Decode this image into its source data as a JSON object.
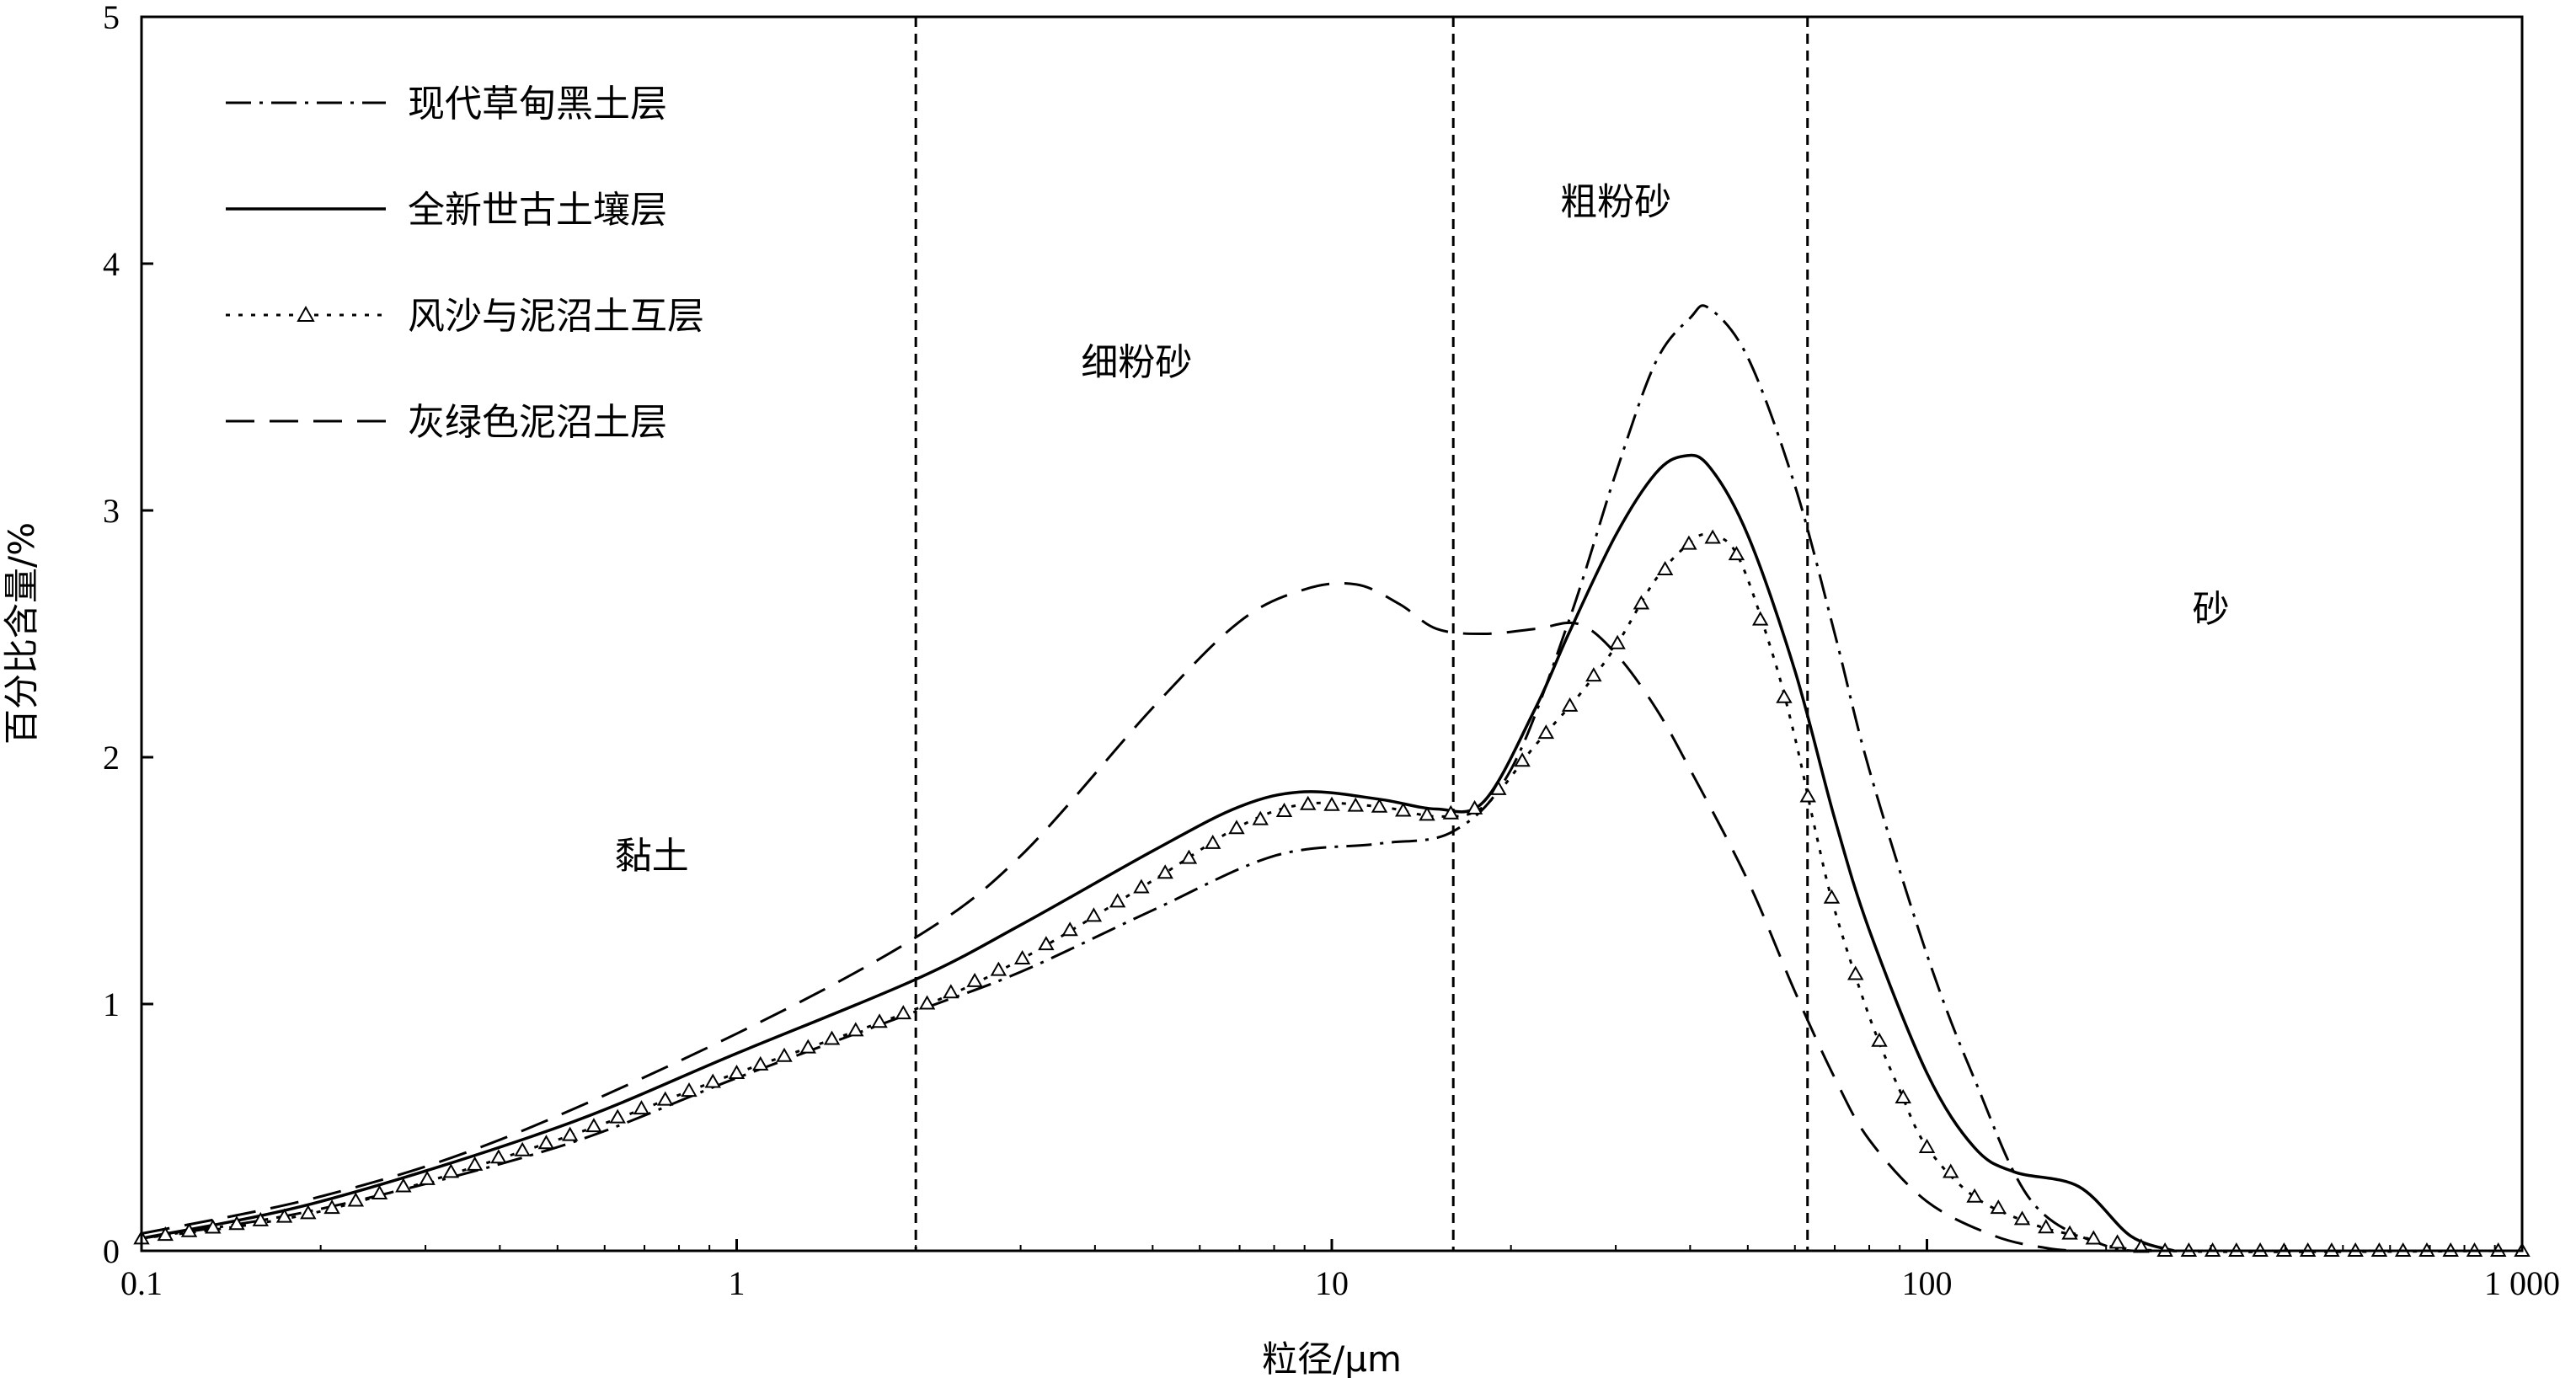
{
  "chart_data": {
    "type": "line",
    "xscale": "log",
    "xlim": [
      0.1,
      1000
    ],
    "ylim": [
      0,
      5
    ],
    "xlabel": "粒径/μm",
    "ylabel": "百分比含量/%",
    "x_ticks": [
      0.1,
      1,
      10,
      100,
      1000
    ],
    "x_tick_labels": [
      "0.1",
      "1",
      "10",
      "100",
      "1 000"
    ],
    "y_ticks": [
      0,
      1,
      2,
      3,
      4,
      5
    ],
    "y_tick_labels": [
      "0",
      "1",
      "2",
      "3",
      "4",
      "5"
    ],
    "legend_position": "top-left",
    "boundaries": [
      2,
      16,
      63
    ],
    "regions": [
      {
        "label": "黏土",
        "x": 0.72,
        "y": 1.55
      },
      {
        "label": "细粉砂",
        "x": 4.7,
        "y": 3.55
      },
      {
        "label": "粗粉砂",
        "x": 30,
        "y": 4.2
      },
      {
        "label": "砂",
        "x": 300,
        "y": 2.55
      }
    ],
    "series": [
      {
        "name": "现代草甸黑土层",
        "style": "dashdot",
        "points": [
          [
            0.1,
            0.05
          ],
          [
            0.2,
            0.17
          ],
          [
            0.5,
            0.42
          ],
          [
            1,
            0.7
          ],
          [
            2,
            0.97
          ],
          [
            3,
            1.13
          ],
          [
            5,
            1.38
          ],
          [
            8,
            1.6
          ],
          [
            12,
            1.65
          ],
          [
            16,
            1.7
          ],
          [
            20,
            1.95
          ],
          [
            25,
            2.55
          ],
          [
            30,
            3.15
          ],
          [
            35,
            3.6
          ],
          [
            40,
            3.78
          ],
          [
            43,
            3.82
          ],
          [
            50,
            3.62
          ],
          [
            60,
            3.1
          ],
          [
            70,
            2.5
          ],
          [
            80,
            1.95
          ],
          [
            100,
            1.2
          ],
          [
            120,
            0.7
          ],
          [
            150,
            0.2
          ],
          [
            200,
            0.02
          ],
          [
            250,
            0.0
          ]
        ]
      },
      {
        "name": "全新世古土壤层",
        "style": "solid",
        "points": [
          [
            0.1,
            0.05
          ],
          [
            0.2,
            0.2
          ],
          [
            0.5,
            0.5
          ],
          [
            1,
            0.8
          ],
          [
            2,
            1.1
          ],
          [
            3,
            1.32
          ],
          [
            5,
            1.62
          ],
          [
            7,
            1.8
          ],
          [
            9,
            1.86
          ],
          [
            12,
            1.83
          ],
          [
            15,
            1.79
          ],
          [
            18,
            1.82
          ],
          [
            22,
            2.2
          ],
          [
            25,
            2.5
          ],
          [
            30,
            2.9
          ],
          [
            35,
            3.15
          ],
          [
            39,
            3.22
          ],
          [
            43,
            3.18
          ],
          [
            50,
            2.9
          ],
          [
            60,
            2.35
          ],
          [
            70,
            1.75
          ],
          [
            80,
            1.3
          ],
          [
            100,
            0.72
          ],
          [
            120,
            0.42
          ],
          [
            140,
            0.32
          ],
          [
            180,
            0.26
          ],
          [
            220,
            0.06
          ],
          [
            260,
            0.0
          ]
        ]
      },
      {
        "name": "风沙与泥沼土互层",
        "style": "dotted-triangle",
        "points": [
          [
            0.1,
            0.05
          ],
          [
            0.2,
            0.16
          ],
          [
            0.5,
            0.45
          ],
          [
            1,
            0.72
          ],
          [
            2,
            0.98
          ],
          [
            3,
            1.18
          ],
          [
            5,
            1.5
          ],
          [
            7,
            1.72
          ],
          [
            9,
            1.81
          ],
          [
            12,
            1.8
          ],
          [
            15,
            1.76
          ],
          [
            18,
            1.8
          ],
          [
            22,
            2.05
          ],
          [
            26,
            2.25
          ],
          [
            30,
            2.45
          ],
          [
            35,
            2.72
          ],
          [
            40,
            2.87
          ],
          [
            43,
            2.9
          ],
          [
            48,
            2.82
          ],
          [
            55,
            2.42
          ],
          [
            60,
            2.08
          ],
          [
            65,
            1.7
          ],
          [
            70,
            1.38
          ],
          [
            80,
            0.95
          ],
          [
            90,
            0.65
          ],
          [
            100,
            0.42
          ],
          [
            120,
            0.22
          ],
          [
            150,
            0.11
          ],
          [
            180,
            0.06
          ],
          [
            250,
            0.0
          ],
          [
            1000,
            0.0
          ]
        ]
      },
      {
        "name": "灰绿色泥沼土层",
        "style": "dashed",
        "points": [
          [
            0.1,
            0.07
          ],
          [
            0.2,
            0.22
          ],
          [
            0.4,
            0.45
          ],
          [
            1,
            0.88
          ],
          [
            2,
            1.27
          ],
          [
            3,
            1.6
          ],
          [
            5,
            2.2
          ],
          [
            7,
            2.55
          ],
          [
            9,
            2.68
          ],
          [
            11,
            2.7
          ],
          [
            13,
            2.62
          ],
          [
            15,
            2.52
          ],
          [
            18,
            2.5
          ],
          [
            22,
            2.52
          ],
          [
            26,
            2.54
          ],
          [
            30,
            2.42
          ],
          [
            35,
            2.2
          ],
          [
            40,
            1.95
          ],
          [
            50,
            1.5
          ],
          [
            60,
            1.05
          ],
          [
            70,
            0.7
          ],
          [
            80,
            0.45
          ],
          [
            100,
            0.2
          ],
          [
            130,
            0.06
          ],
          [
            160,
            0.01
          ],
          [
            180,
            0.0
          ]
        ]
      }
    ]
  }
}
